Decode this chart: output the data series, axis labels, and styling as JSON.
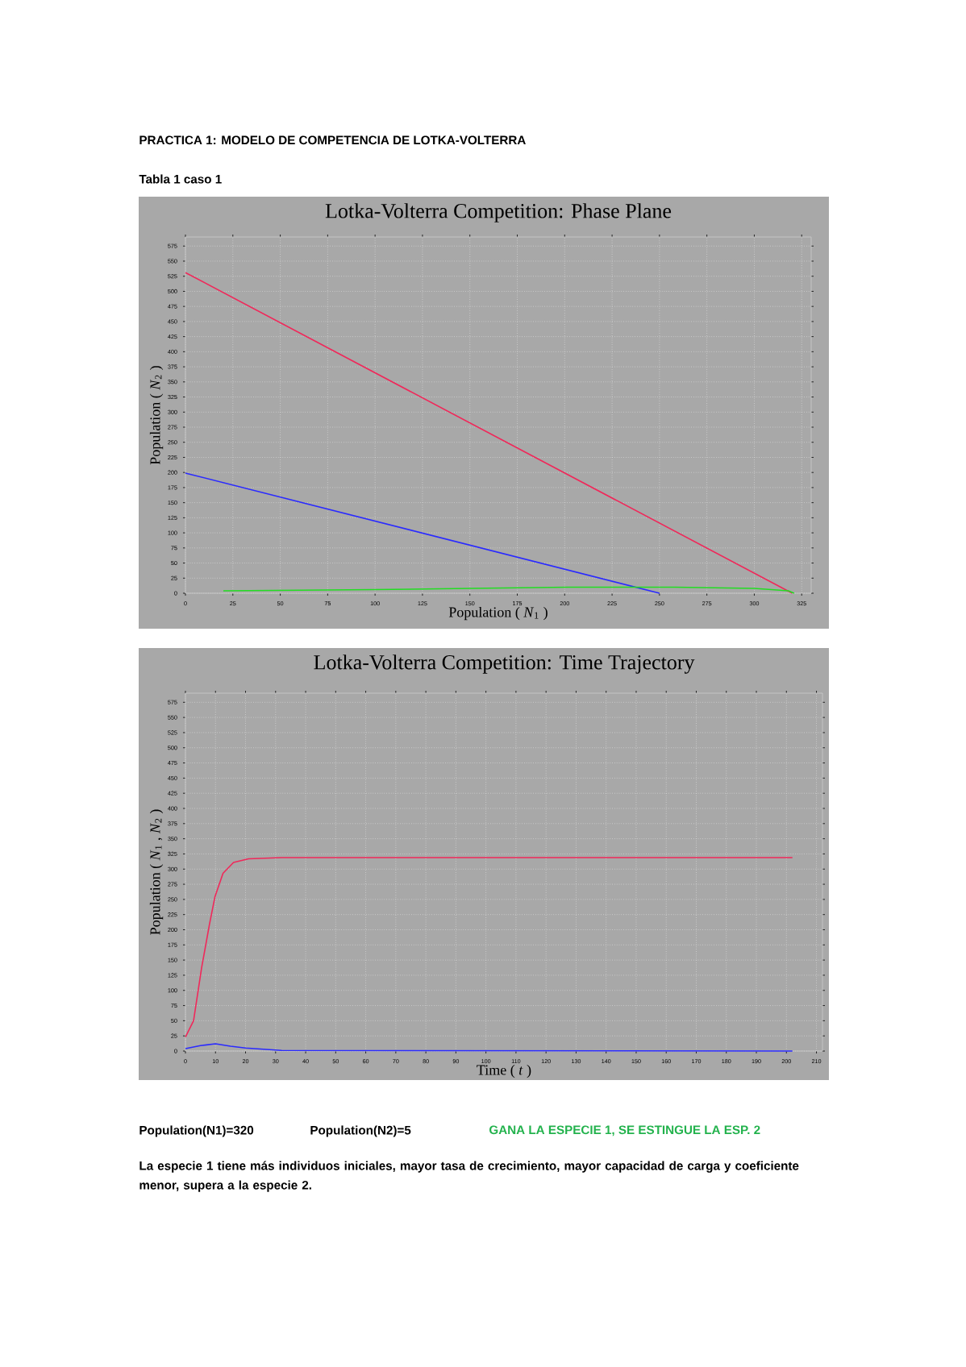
{
  "chart_data": [
    {
      "type": "line",
      "title": "Lotka-Volterra Competition: Phase Plane",
      "xlabel": "Population ( *N*$_{1}$ )",
      "ylabel": "Population ( *N*$_{2}$ )",
      "annotations": [
        "PRACTICA 1: MODELO DE COMPETENCIA DE LOTKA-VOLTERRA",
        "Tabla 1 caso 1"
      ],
      "xlim": [
        0,
        330
      ],
      "xticks": [
        0,
        25,
        50,
        75,
        100,
        125,
        150,
        175,
        200,
        225,
        250,
        275,
        300,
        325
      ],
      "ylim": [
        0,
        590
      ],
      "yticks": [
        0,
        25,
        50,
        75,
        100,
        125,
        150,
        175,
        200,
        225,
        250,
        275,
        300,
        325,
        350,
        375,
        400,
        425,
        450,
        475,
        500,
        525,
        550,
        575
      ],
      "grid": true,
      "series": [
        {
          "color": "#f0285a",
          "x": [
            0,
            320
          ],
          "values": [
            531,
            0
          ]
        },
        {
          "color": "#2a2aff",
          "x": [
            0,
            250
          ],
          "values": [
            199,
            0
          ]
        },
        {
          "color": "#22dd22",
          "x": [
            20,
            60,
            99,
            150,
            202,
            258,
            300,
            318,
            321
          ],
          "values": [
            4,
            5,
            6,
            8,
            10,
            10,
            8,
            4,
            0
          ]
        }
      ]
    },
    {
      "type": "line",
      "title": "Lotka-Volterra Competition: Time Trajectory",
      "xlabel": "Time ( *t* )",
      "ylabel": "Population ( *N*$_{1}$ , *N*$_{2}$ )",
      "annotations": [
        "Population(N1)=320",
        "Population(N2)=5",
        "GANA LA ESPECIE 1, SE ESTINGUE LA ESP. 2",
        "La especie 1 tiene más individuos iniciales, mayor tasa de crecimiento, mayor capacidad de carga y coeficiente menor, supera a la especie 2."
      ],
      "xlim": [
        0,
        212
      ],
      "xticks": [
        0,
        10,
        20,
        30,
        40,
        50,
        60,
        70,
        80,
        90,
        100,
        110,
        120,
        130,
        140,
        150,
        160,
        170,
        180,
        190,
        200,
        210
      ],
      "ylim": [
        0,
        590
      ],
      "yticks": [
        0,
        25,
        50,
        75,
        100,
        125,
        150,
        175,
        200,
        225,
        250,
        275,
        300,
        325,
        350,
        375,
        400,
        425,
        450,
        475,
        500,
        525,
        550,
        575
      ],
      "grid": true,
      "series": [
        {
          "color": "#f0285a",
          "x": [
            0,
            2.7,
            5.4,
            8,
            9.8,
            12.5,
            16,
            21,
            32,
            202
          ],
          "values": [
            23,
            50,
            138,
            209,
            254,
            293,
            311,
            317,
            319,
            319
          ]
        },
        {
          "color": "#2a2aff",
          "x": [
            0,
            5,
            10,
            15,
            20,
            32,
            202
          ],
          "values": [
            4,
            9,
            12,
            8,
            5,
            1,
            0
          ]
        }
      ]
    }
  ]
}
